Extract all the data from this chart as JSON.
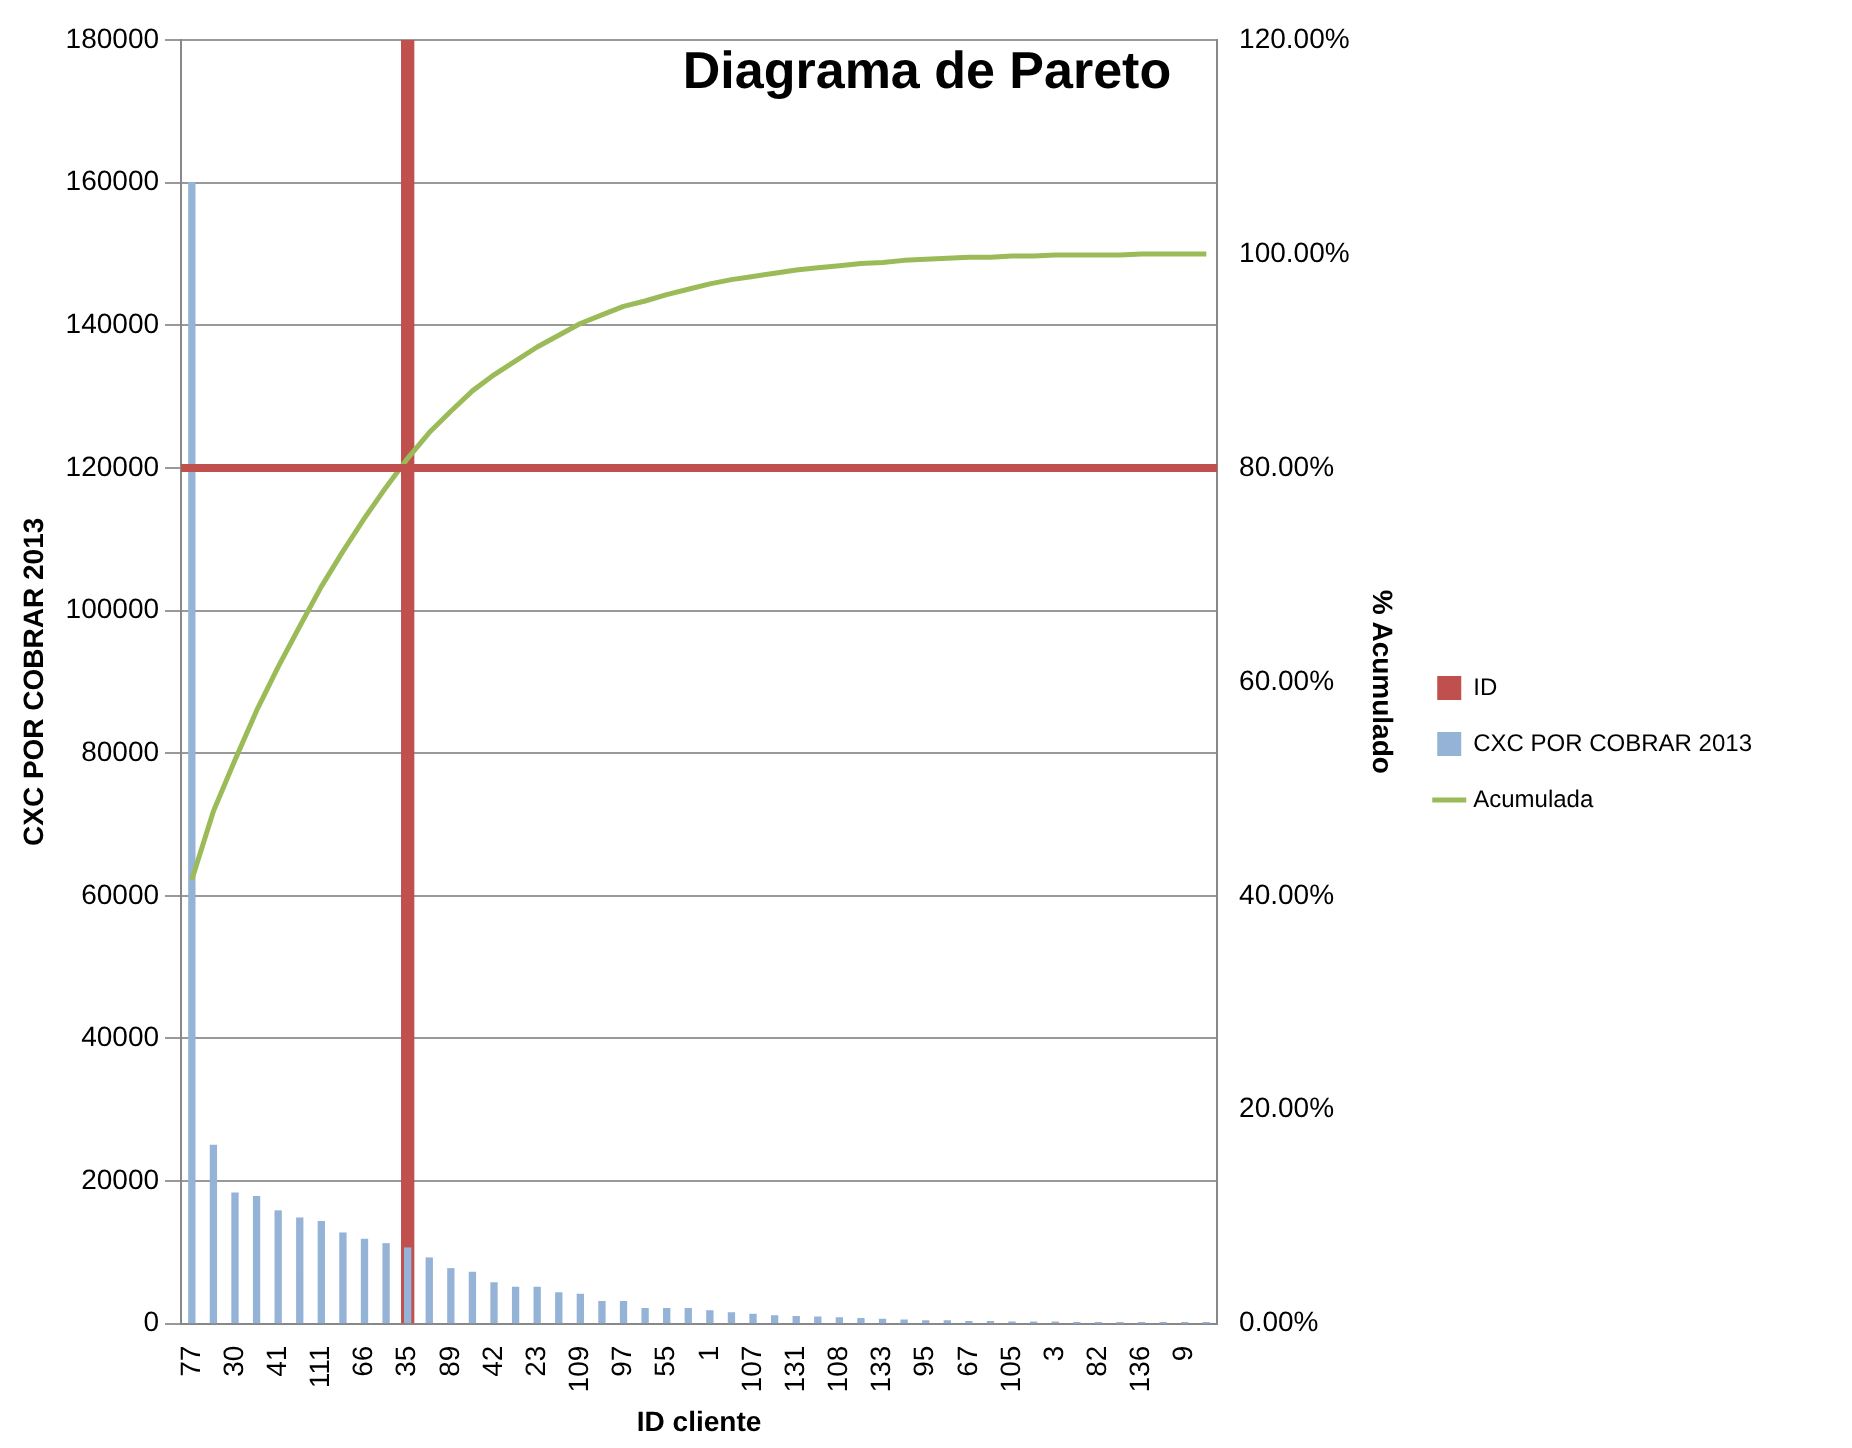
{
  "chart_data": {
    "type": "bar",
    "title": "Diagrama de Pareto",
    "xlabel": "ID cliente",
    "ylabel": "CXC POR COBRAR 2013",
    "y2label": "% Acumulado",
    "categories": [
      "77",
      null,
      "30",
      null,
      "41",
      null,
      "111",
      null,
      "66",
      null,
      "35",
      null,
      "89",
      null,
      "42",
      null,
      "23",
      null,
      "109",
      null,
      "97",
      null,
      "55",
      null,
      "1",
      null,
      "107",
      null,
      "131",
      null,
      "108",
      null,
      "133",
      null,
      "95",
      null,
      "67",
      null,
      "105",
      null,
      "3",
      null,
      "82",
      null,
      "136",
      null,
      "9",
      null
    ],
    "series": [
      {
        "name": "ID",
        "color": "#c0504d",
        "values": [
          null,
          null,
          null,
          null,
          null,
          null,
          null,
          null,
          null,
          null,
          180000,
          null,
          null,
          null,
          null,
          null,
          null,
          null,
          null,
          null,
          null,
          null,
          null,
          null,
          null,
          null,
          null,
          null,
          null,
          null,
          null,
          null,
          null,
          null,
          null,
          null,
          null,
          null,
          null,
          null,
          null,
          null,
          null,
          null,
          null,
          null,
          null,
          null
        ]
      },
      {
        "name": "CXC POR COBRAR 2013",
        "color": "#95b3d7",
        "values": [
          160000,
          25000,
          18300,
          17800,
          15800,
          14800,
          14300,
          12700,
          11800,
          11200,
          10600,
          9200,
          7700,
          7200,
          5700,
          5100,
          5100,
          4300,
          4100,
          3100,
          3100,
          2100,
          2100,
          2100,
          1800,
          1500,
          1300,
          1100,
          1000,
          900,
          800,
          700,
          600,
          500,
          400,
          400,
          300,
          300,
          200,
          200,
          200,
          100,
          100,
          100,
          100,
          100,
          100,
          100
        ]
      },
      {
        "name": "Acumulada",
        "type": "line",
        "axis": "y2",
        "color": "#9bbb59",
        "values": [
          41.5,
          47.9,
          52.7,
          57.3,
          61.4,
          65.2,
          68.9,
          72.2,
          75.3,
          78.2,
          80.9,
          83.3,
          85.3,
          87.2,
          88.7,
          90.0,
          91.3,
          92.4,
          93.5,
          94.3,
          95.1,
          95.6,
          96.2,
          96.7,
          97.2,
          97.6,
          97.9,
          98.2,
          98.5,
          98.7,
          98.9,
          99.1,
          99.2,
          99.4,
          99.5,
          99.6,
          99.7,
          99.7,
          99.8,
          99.8,
          99.9,
          99.9,
          99.9,
          99.9,
          100,
          100,
          100,
          100
        ]
      }
    ],
    "ylim": [
      0,
      180000
    ],
    "yticks": [
      0,
      20000,
      40000,
      60000,
      80000,
      100000,
      120000,
      140000,
      160000,
      180000
    ],
    "y2lim": [
      0,
      120
    ],
    "y2ticks": [
      {
        "value": 0,
        "label": "0.00%"
      },
      {
        "value": 20,
        "label": "20.00%"
      },
      {
        "value": 40,
        "label": "40.00%"
      },
      {
        "value": 60,
        "label": "60.00%"
      },
      {
        "value": 80,
        "label": "80.00%"
      },
      {
        "value": 100,
        "label": "100.00%"
      },
      {
        "value": 120,
        "label": "120.00%"
      }
    ],
    "ref_lines": [
      {
        "axis": "y",
        "value": 120000,
        "color": "#c0504d"
      }
    ],
    "grid": "y",
    "legend": "right",
    "marker": "none"
  }
}
